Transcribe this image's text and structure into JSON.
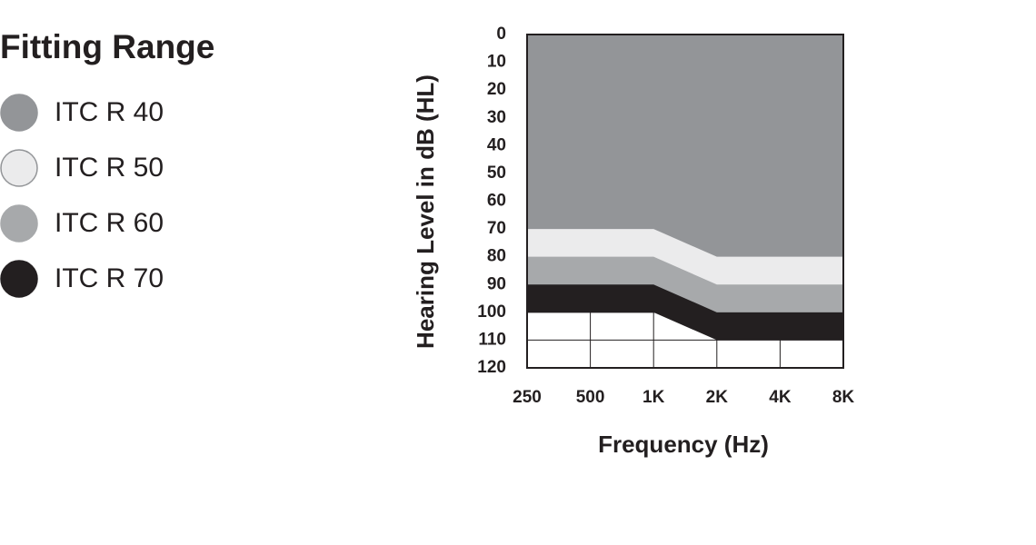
{
  "chart_data": {
    "type": "area",
    "title": "Fitting Range",
    "xlabel": "Frequency (Hz)",
    "ylabel": "Hearing Level in dB (HL)",
    "categories": [
      "250",
      "500",
      "1K",
      "2K",
      "4K",
      "8K"
    ],
    "series": [
      {
        "name": "ITC R 40",
        "color": "#939598",
        "values": [
          70,
          70,
          70,
          80,
          80,
          80
        ]
      },
      {
        "name": "ITC R 50",
        "color": "#ebebec",
        "values": [
          80,
          80,
          80,
          90,
          90,
          90
        ]
      },
      {
        "name": "ITC R 60",
        "color": "#a7a9ab",
        "values": [
          90,
          90,
          90,
          100,
          100,
          100
        ]
      },
      {
        "name": "ITC R 70",
        "color": "#231f20",
        "values": [
          100,
          100,
          100,
          110,
          110,
          110
        ]
      }
    ],
    "ylim": [
      0,
      120
    ],
    "yticks": [
      0,
      10,
      20,
      30,
      40,
      50,
      60,
      70,
      80,
      90,
      100,
      110,
      120
    ],
    "y_inverted": true,
    "grid": true
  }
}
